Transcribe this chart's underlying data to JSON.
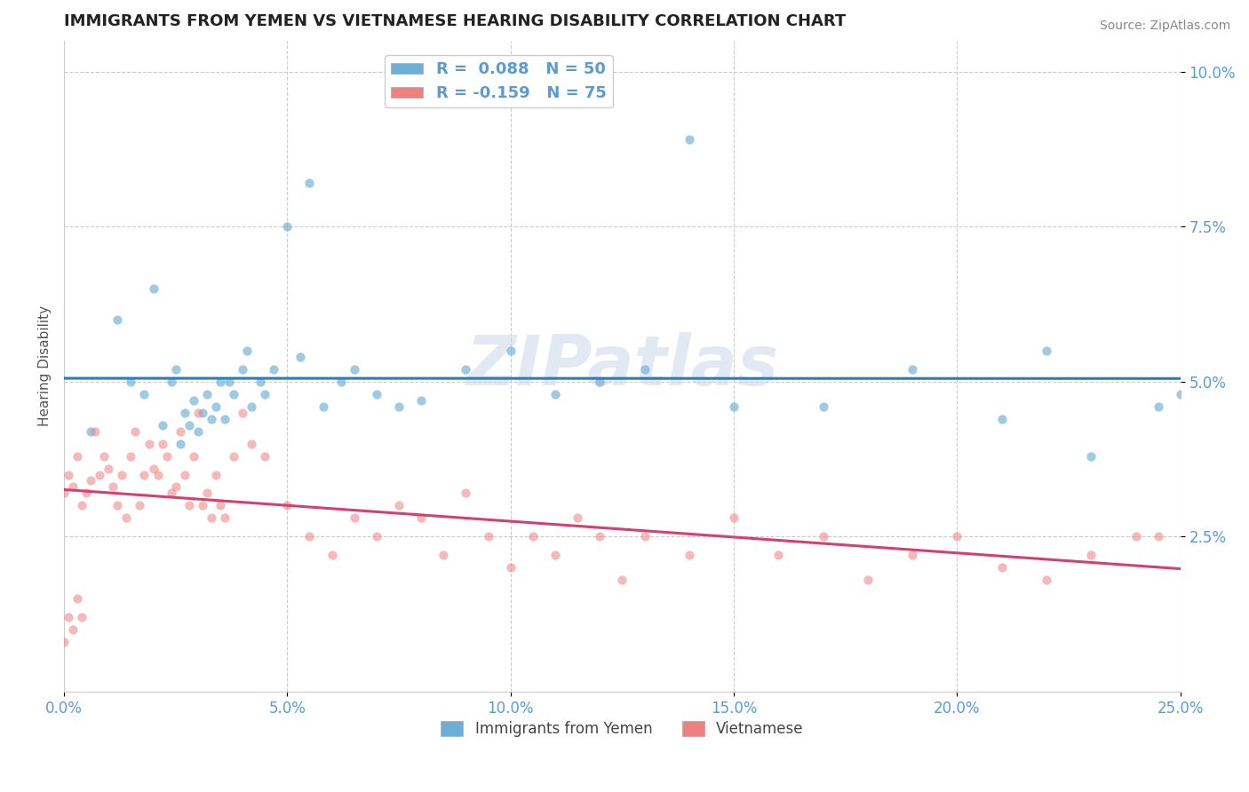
{
  "title": "IMMIGRANTS FROM YEMEN VS VIETNAMESE HEARING DISABILITY CORRELATION CHART",
  "source": "Source: ZipAtlas.com",
  "ylabel": "Hearing Disability",
  "xlim": [
    0.0,
    0.25
  ],
  "ylim": [
    0.0,
    0.105
  ],
  "xticks": [
    0.0,
    0.05,
    0.1,
    0.15,
    0.2,
    0.25
  ],
  "yticks": [
    0.025,
    0.05,
    0.075,
    0.1
  ],
  "xticklabels": [
    "0.0%",
    "5.0%",
    "10.0%",
    "15.0%",
    "20.0%",
    "25.0%"
  ],
  "yticklabels": [
    "2.5%",
    "5.0%",
    "7.5%",
    "10.0%"
  ],
  "legend1_label": "R =  0.088   N = 50",
  "legend2_label": "R = -0.159   N = 75",
  "blue_color": "#6baed6",
  "pink_color": "#f08080",
  "trend_blue": "#2b7bba",
  "trend_pink": "#d44070",
  "tick_color": "#5b9bd5",
  "watermark": "ZIPatlas",
  "blue_x": [
    0.006,
    0.012,
    0.015,
    0.018,
    0.02,
    0.022,
    0.024,
    0.025,
    0.026,
    0.027,
    0.028,
    0.029,
    0.03,
    0.031,
    0.032,
    0.033,
    0.034,
    0.035,
    0.036,
    0.037,
    0.038,
    0.04,
    0.041,
    0.042,
    0.044,
    0.045,
    0.047,
    0.05,
    0.053,
    0.055,
    0.058,
    0.062,
    0.065,
    0.07,
    0.075,
    0.08,
    0.09,
    0.1,
    0.11,
    0.12,
    0.13,
    0.14,
    0.15,
    0.17,
    0.19,
    0.21,
    0.22,
    0.23,
    0.245,
    0.25
  ],
  "blue_y": [
    0.042,
    0.06,
    0.05,
    0.048,
    0.065,
    0.043,
    0.05,
    0.052,
    0.04,
    0.045,
    0.043,
    0.047,
    0.042,
    0.045,
    0.048,
    0.044,
    0.046,
    0.05,
    0.044,
    0.05,
    0.048,
    0.052,
    0.055,
    0.046,
    0.05,
    0.048,
    0.052,
    0.075,
    0.054,
    0.082,
    0.046,
    0.05,
    0.052,
    0.048,
    0.046,
    0.047,
    0.052,
    0.055,
    0.048,
    0.05,
    0.052,
    0.089,
    0.046,
    0.046,
    0.052,
    0.044,
    0.055,
    0.038,
    0.046,
    0.048
  ],
  "pink_x": [
    0.0,
    0.001,
    0.002,
    0.003,
    0.004,
    0.005,
    0.006,
    0.007,
    0.008,
    0.009,
    0.01,
    0.011,
    0.012,
    0.013,
    0.014,
    0.015,
    0.016,
    0.017,
    0.018,
    0.019,
    0.02,
    0.021,
    0.022,
    0.023,
    0.024,
    0.025,
    0.026,
    0.027,
    0.028,
    0.029,
    0.03,
    0.031,
    0.032,
    0.033,
    0.034,
    0.035,
    0.036,
    0.038,
    0.04,
    0.042,
    0.045,
    0.05,
    0.055,
    0.06,
    0.065,
    0.07,
    0.075,
    0.08,
    0.085,
    0.09,
    0.095,
    0.1,
    0.105,
    0.11,
    0.115,
    0.12,
    0.125,
    0.13,
    0.14,
    0.15,
    0.16,
    0.17,
    0.18,
    0.19,
    0.2,
    0.21,
    0.22,
    0.23,
    0.24,
    0.245,
    0.0,
    0.001,
    0.002,
    0.003,
    0.004
  ],
  "pink_y": [
    0.032,
    0.035,
    0.033,
    0.038,
    0.03,
    0.032,
    0.034,
    0.042,
    0.035,
    0.038,
    0.036,
    0.033,
    0.03,
    0.035,
    0.028,
    0.038,
    0.042,
    0.03,
    0.035,
    0.04,
    0.036,
    0.035,
    0.04,
    0.038,
    0.032,
    0.033,
    0.042,
    0.035,
    0.03,
    0.038,
    0.045,
    0.03,
    0.032,
    0.028,
    0.035,
    0.03,
    0.028,
    0.038,
    0.045,
    0.04,
    0.038,
    0.03,
    0.025,
    0.022,
    0.028,
    0.025,
    0.03,
    0.028,
    0.022,
    0.032,
    0.025,
    0.02,
    0.025,
    0.022,
    0.028,
    0.025,
    0.018,
    0.025,
    0.022,
    0.028,
    0.022,
    0.025,
    0.018,
    0.022,
    0.025,
    0.02,
    0.018,
    0.022,
    0.025,
    0.025,
    0.008,
    0.012,
    0.01,
    0.015,
    0.012
  ]
}
